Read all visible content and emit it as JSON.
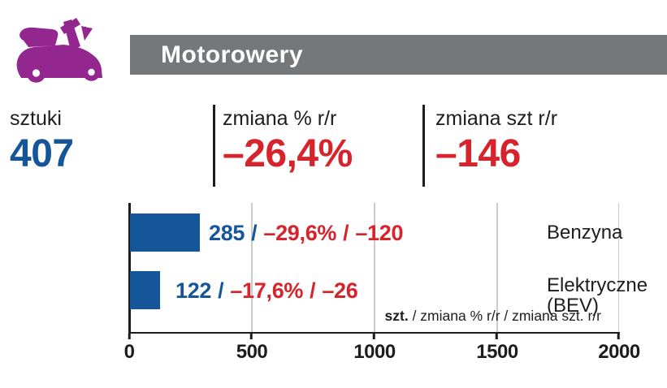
{
  "header": {
    "title": "Motorowery",
    "bar_color": "#75787B"
  },
  "icon": {
    "name": "scooter-icon",
    "color": "#93278F"
  },
  "summary": {
    "units": {
      "label": "sztuki",
      "value": "407",
      "value_color": "#15569B"
    },
    "pct_change": {
      "label": "zmiana % r/r",
      "value": "–26,4%",
      "value_color": "#D7232B"
    },
    "abs_change": {
      "label": "zmiana szt r/r",
      "value": "–146",
      "value_color": "#D7232B"
    }
  },
  "chart_data": {
    "type": "bar",
    "orientation": "horizontal",
    "categories": [
      "Benzyna",
      "Elektryczne (BEV)"
    ],
    "values": [
      285,
      122
    ],
    "series": [
      {
        "name": "szt.",
        "values": [
          285,
          122
        ]
      },
      {
        "name": "zmiana % r/r",
        "values": [
          "–29,6%",
          "–17,6%"
        ]
      },
      {
        "name": "zmiana szt. r/r",
        "values": [
          -120,
          -26
        ]
      }
    ],
    "xlim": [
      0,
      2000
    ],
    "x_ticks": [
      "0",
      "500",
      "1000",
      "1500",
      "2000"
    ],
    "grid": true,
    "legend": "szt. / zmiana % r/r / zmiana szt. r/r",
    "legend_position": "bottom-right",
    "bar_color": "#15569B"
  },
  "chart_labels": {
    "separator": "/",
    "rows": [
      {
        "category_line1": "Benzyna",
        "category_line2": "",
        "szt": "285",
        "pct": "–29,6%",
        "abs": "–120"
      },
      {
        "category_line1": "Elektryczne",
        "category_line2": "(BEV)",
        "szt": "122",
        "pct": "–17,6%",
        "abs": "–26"
      }
    ],
    "legend_bold": "szt.",
    "legend_rest": " / zmiana % r/r / zmiana szt. r/r"
  },
  "colors": {
    "accent_purple": "#93278F",
    "header_gray": "#75787B",
    "value_blue": "#15569B",
    "value_red": "#D7232B",
    "text_dark": "#1D1D1B",
    "gridline": "#CBCBCB"
  }
}
